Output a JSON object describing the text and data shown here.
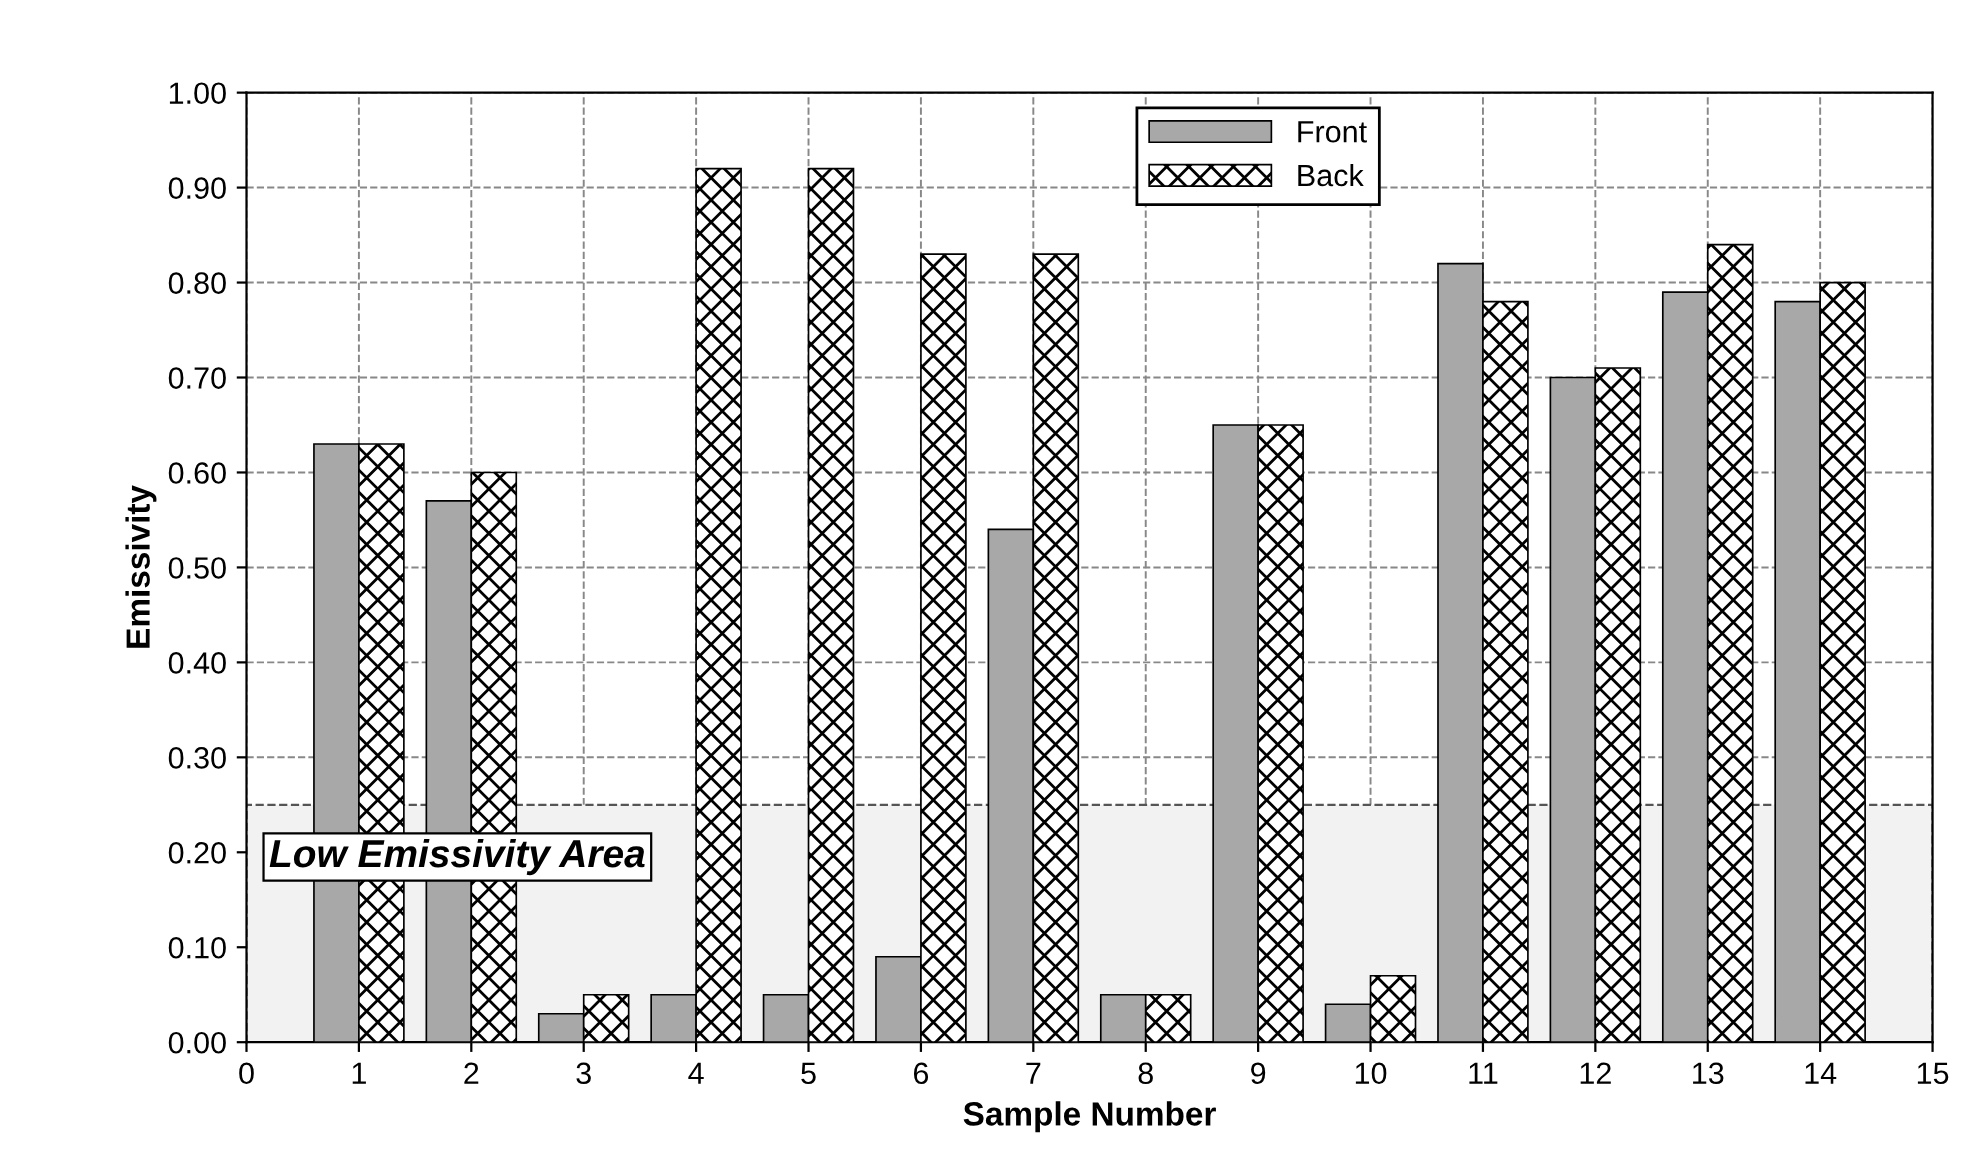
{
  "chart_data": {
    "type": "bar",
    "xlabel": "Sample Number",
    "ylabel": "Emissivity",
    "x": [
      1,
      2,
      3,
      4,
      5,
      6,
      7,
      8,
      9,
      10,
      11,
      12,
      13,
      14
    ],
    "series": [
      {
        "name": "Front",
        "color": "#a8a8a8",
        "values": [
          0.63,
          0.57,
          0.03,
          0.05,
          0.05,
          0.09,
          0.54,
          0.05,
          0.65,
          0.04,
          0.82,
          0.7,
          0.79,
          0.78
        ]
      },
      {
        "name": "Back",
        "color": "#000000",
        "values": [
          0.63,
          0.6,
          0.05,
          0.92,
          0.92,
          0.83,
          0.83,
          0.05,
          0.65,
          0.07,
          0.78,
          0.71,
          0.84,
          0.8
        ]
      }
    ],
    "xlim": [
      0,
      15
    ],
    "xticks": [
      0,
      1,
      2,
      3,
      4,
      5,
      6,
      7,
      8,
      9,
      10,
      11,
      12,
      13,
      14,
      15
    ],
    "ylim": [
      0,
      1
    ],
    "yticks": [
      {
        "value": 0,
        "label": "0.00"
      },
      {
        "value": 0.1,
        "label": "0.10"
      },
      {
        "value": 0.2,
        "label": "0.20"
      },
      {
        "value": 0.3,
        "label": "0.30"
      },
      {
        "value": 0.4,
        "label": "0.40"
      },
      {
        "value": 0.5,
        "label": "0.50"
      },
      {
        "value": 0.6,
        "label": "0.60"
      },
      {
        "value": 0.7,
        "label": "0.70"
      },
      {
        "value": 0.8,
        "label": "0.80"
      },
      {
        "value": 0.9,
        "label": "0.90"
      },
      {
        "value": 1.0,
        "label": "1.00"
      }
    ],
    "bands": [
      {
        "axis": "y",
        "from": 0,
        "to": 0.25,
        "label": "Low Emissivity Area"
      }
    ],
    "grid": true,
    "legend": "top"
  }
}
